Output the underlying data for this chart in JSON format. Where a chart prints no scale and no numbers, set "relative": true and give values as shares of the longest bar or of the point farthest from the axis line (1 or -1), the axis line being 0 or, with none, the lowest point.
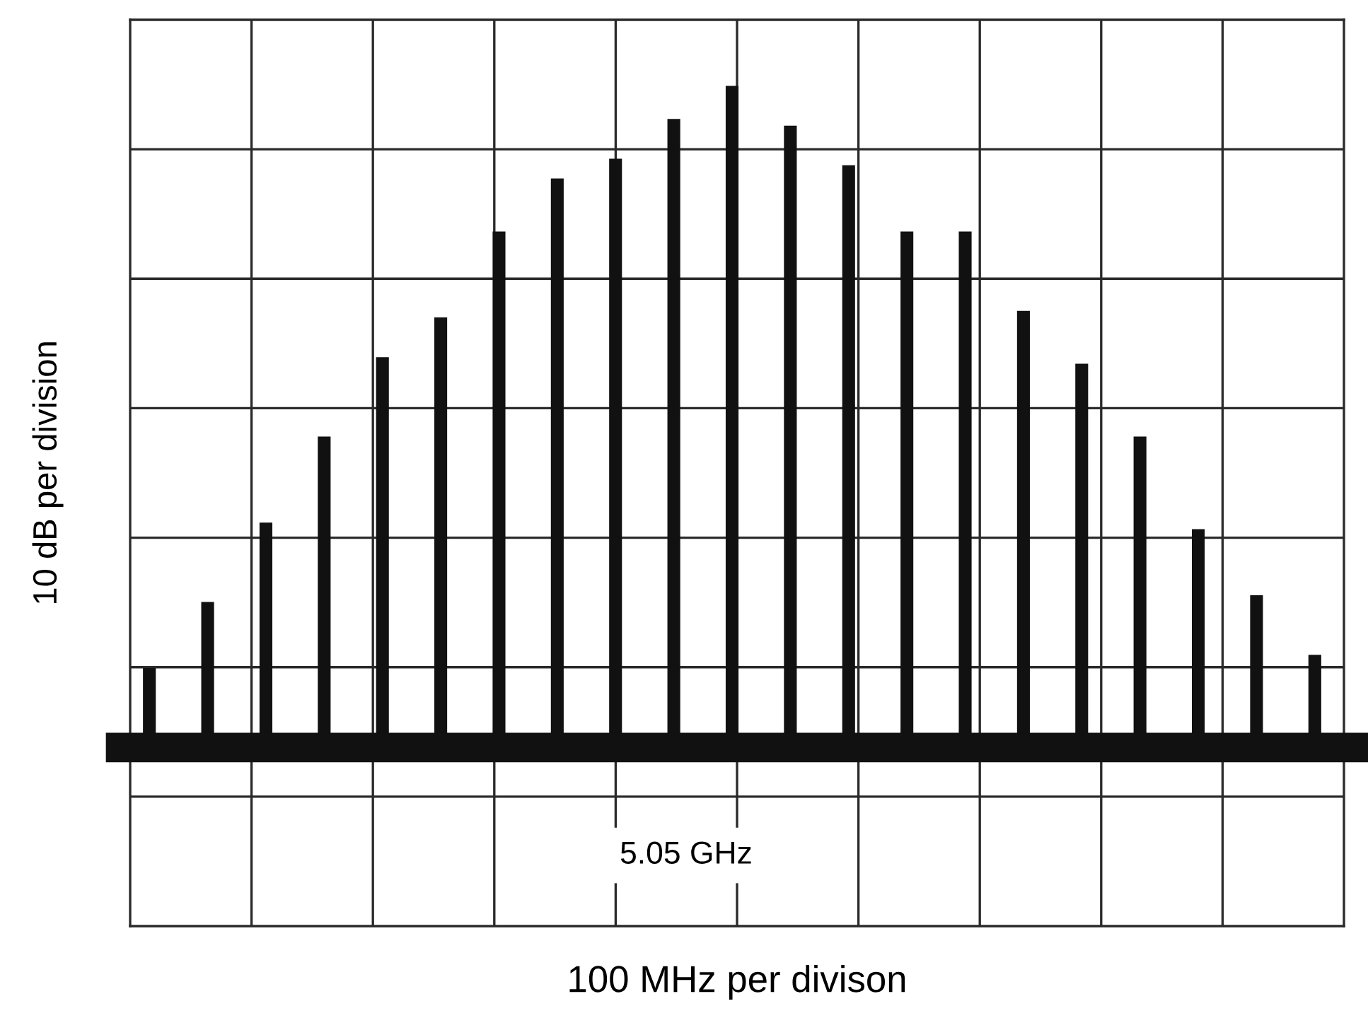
{
  "chart_data": {
    "type": "bar",
    "relative": true,
    "categories": [
      null,
      null,
      null,
      null,
      null,
      null,
      null,
      null,
      null,
      null,
      null,
      null,
      null,
      null,
      null,
      null,
      null,
      null,
      null,
      null,
      null
    ],
    "values": [
      0.12,
      0.22,
      0.34,
      0.47,
      0.59,
      0.65,
      0.78,
      0.86,
      0.89,
      0.95,
      1,
      0.94,
      0.88,
      0.78,
      0.78,
      0.66,
      0.58,
      0.47,
      0.33,
      0.23,
      0.14
    ],
    "color": "#111111",
    "ylabel": "10 dB per division",
    "annotations": [
      "5.05 GHz",
      "100 MHz per divison"
    ],
    "grid": true,
    "tick_labels": false
  }
}
